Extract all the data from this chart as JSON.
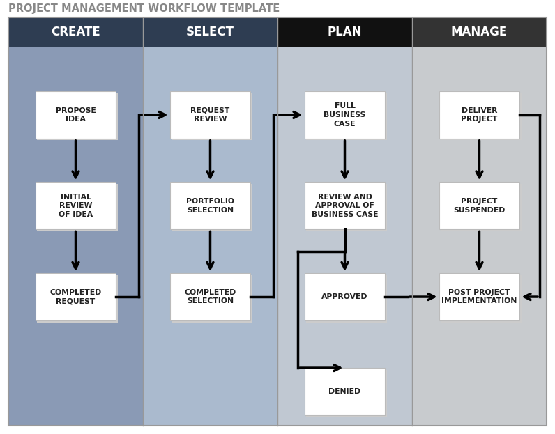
{
  "title": "PROJECT MANAGEMENT WORKFLOW TEMPLATE",
  "title_color": "#888888",
  "title_fontsize": 10.5,
  "header_labels": [
    "CREATE",
    "SELECT",
    "PLAN",
    "MANAGE"
  ],
  "header_colors": [
    "#2e3d52",
    "#2e3d52",
    "#111111",
    "#333333"
  ],
  "col_content_colors": [
    "#8a9ab5",
    "#aabace",
    "#c0c8d2",
    "#c8cbce"
  ],
  "nodes": [
    {
      "id": "propose",
      "col": 0,
      "row": 0,
      "text": "PROPOSE\nIDEA"
    },
    {
      "id": "initial",
      "col": 0,
      "row": 1,
      "text": "INITIAL\nREVIEW\nOF IDEA"
    },
    {
      "id": "completed_req",
      "col": 0,
      "row": 2,
      "text": "COMPLETED\nREQUEST"
    },
    {
      "id": "request",
      "col": 1,
      "row": 0,
      "text": "REQUEST\nREVIEW"
    },
    {
      "id": "portfolio",
      "col": 1,
      "row": 1,
      "text": "PORTFOLIO\nSELECTION"
    },
    {
      "id": "completed_sel",
      "col": 1,
      "row": 2,
      "text": "COMPLETED\nSELECTION"
    },
    {
      "id": "full_bc",
      "col": 2,
      "row": 0,
      "text": "FULL\nBUSINESS\nCASE"
    },
    {
      "id": "review_bc",
      "col": 2,
      "row": 1,
      "text": "REVIEW AND\nAPPROVAL OF\nBUSINESS CASE"
    },
    {
      "id": "approved",
      "col": 2,
      "row": 2,
      "text": "APPROVED"
    },
    {
      "id": "denied",
      "col": 2,
      "row": 3,
      "text": "DENIED"
    },
    {
      "id": "deliver",
      "col": 3,
      "row": 0,
      "text": "DELIVER\nPROJECT"
    },
    {
      "id": "suspended",
      "col": 3,
      "row": 1,
      "text": "PROJECT\nSUSPENDED"
    },
    {
      "id": "post",
      "col": 3,
      "row": 2,
      "text": "POST PROJECT\nIMPLEMENTATION"
    }
  ]
}
